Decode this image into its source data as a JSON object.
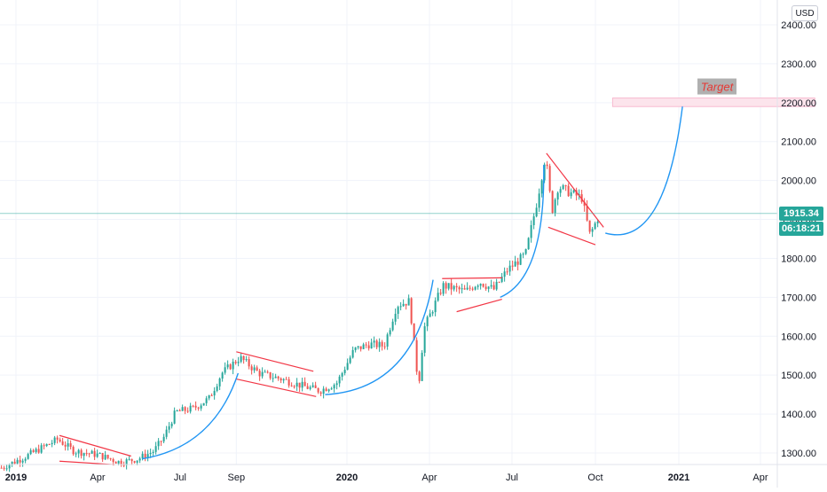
{
  "currency": "USD",
  "current_price": "1915.34",
  "countdown": "06:18:21",
  "target_label": "Target",
  "colors": {
    "up": "#26a69a",
    "down": "#ef5350",
    "pattern": "#f23645",
    "curve": "#2196f3",
    "price_line": "#26a69a",
    "target_zone": "#fce4ec",
    "target_text": "#e53935",
    "target_box": "#b0b0b0"
  },
  "chart_data": {
    "type": "candlestick",
    "symbol_unit": "USD",
    "ylim": [
      1260,
      2440
    ],
    "y_ticks": [
      {
        "value": 1300,
        "label": "1300.00"
      },
      {
        "value": 1400,
        "label": "1400.00"
      },
      {
        "value": 1500,
        "label": "1500.00"
      },
      {
        "value": 1600,
        "label": "1600.00"
      },
      {
        "value": 1700,
        "label": "1700.00"
      },
      {
        "value": 1800,
        "label": "1800.00"
      },
      {
        "value": 1900,
        "label": "1900.00"
      },
      {
        "value": 2000,
        "label": "2000.00"
      },
      {
        "value": 2100,
        "label": "2100.00"
      },
      {
        "value": 2200,
        "label": "2200.00"
      },
      {
        "value": 2300,
        "label": "2300.00"
      },
      {
        "value": 2400,
        "label": "2400.00"
      }
    ],
    "x_ticks": [
      {
        "date": "2019-01-01",
        "label": "2019",
        "major": true
      },
      {
        "date": "2019-04-01",
        "label": "Apr",
        "major": false
      },
      {
        "date": "2019-07-01",
        "label": "Jul",
        "major": false
      },
      {
        "date": "2019-09-01",
        "label": "Sep",
        "major": false
      },
      {
        "date": "2020-01-01",
        "label": "2020",
        "major": true
      },
      {
        "date": "2020-04-01",
        "label": "Apr",
        "major": false
      },
      {
        "date": "2020-07-01",
        "label": "Jul",
        "major": false
      },
      {
        "date": "2020-10-01",
        "label": "Oct",
        "major": false
      },
      {
        "date": "2021-01-01",
        "label": "2021",
        "major": true
      },
      {
        "date": "2021-04-01",
        "label": "Apr",
        "major": false
      }
    ],
    "price_path": [
      [
        "2018-12-15",
        1262
      ],
      [
        "2019-01-10",
        1290
      ],
      [
        "2019-02-15",
        1335
      ],
      [
        "2019-03-05",
        1305
      ],
      [
        "2019-04-01",
        1295
      ],
      [
        "2019-04-25",
        1276
      ],
      [
        "2019-05-15",
        1285
      ],
      [
        "2019-06-01",
        1305
      ],
      [
        "2019-06-12",
        1340
      ],
      [
        "2019-06-25",
        1405
      ],
      [
        "2019-07-15",
        1415
      ],
      [
        "2019-08-01",
        1440
      ],
      [
        "2019-08-15",
        1505
      ],
      [
        "2019-09-04",
        1545
      ],
      [
        "2019-09-25",
        1505
      ],
      [
        "2019-10-20",
        1490
      ],
      [
        "2019-11-15",
        1470
      ],
      [
        "2019-12-01",
        1460
      ],
      [
        "2019-12-20",
        1480
      ],
      [
        "2020-01-08",
        1565
      ],
      [
        "2020-01-25",
        1580
      ],
      [
        "2020-02-10",
        1575
      ],
      [
        "2020-02-24",
        1680
      ],
      [
        "2020-03-09",
        1690
      ],
      [
        "2020-03-19",
        1470
      ],
      [
        "2020-03-25",
        1620
      ],
      [
        "2020-04-15",
        1730
      ],
      [
        "2020-05-10",
        1715
      ],
      [
        "2020-05-25",
        1740
      ],
      [
        "2020-06-10",
        1720
      ],
      [
        "2020-06-25",
        1770
      ],
      [
        "2020-07-15",
        1810
      ],
      [
        "2020-07-28",
        1950
      ],
      [
        "2020-08-06",
        2065
      ],
      [
        "2020-08-13",
        1920
      ],
      [
        "2020-08-20",
        1985
      ],
      [
        "2020-09-01",
        1970
      ],
      [
        "2020-09-15",
        1955
      ],
      [
        "2020-09-24",
        1860
      ],
      [
        "2020-09-30",
        1890
      ],
      [
        "2020-10-05",
        1915
      ]
    ],
    "last_price": 1915.34,
    "target_zone": {
      "from": "2020-10-20",
      "to": "2021-05-31",
      "low": 2190,
      "high": 2212,
      "label": "Target"
    },
    "patterns": [
      {
        "upper": [
          [
            "2019-02-18",
            1345
          ],
          [
            "2019-05-08",
            1292
          ]
        ],
        "lower": [
          [
            "2019-02-18",
            1279
          ],
          [
            "2019-04-20",
            1270
          ]
        ]
      },
      {
        "upper": [
          [
            "2019-09-01",
            1560
          ],
          [
            "2019-11-25",
            1510
          ]
        ],
        "lower": [
          [
            "2019-09-01",
            1490
          ],
          [
            "2019-11-28",
            1445
          ]
        ]
      },
      {
        "upper": [
          [
            "2020-04-15",
            1748
          ],
          [
            "2020-06-20",
            1750
          ]
        ],
        "lower": [
          [
            "2020-05-01",
            1663
          ],
          [
            "2020-06-20",
            1695
          ]
        ]
      },
      {
        "upper": [
          [
            "2020-08-08",
            2070
          ],
          [
            "2020-10-10",
            1880
          ]
        ],
        "lower": [
          [
            "2020-08-10",
            1880
          ],
          [
            "2020-10-01",
            1835
          ]
        ]
      }
    ],
    "curves": [
      {
        "points": [
          [
            "2019-05-20",
            1285
          ],
          [
            "2019-07-25",
            1355
          ],
          [
            "2019-09-03",
            1505
          ]
        ]
      },
      {
        "points": [
          [
            "2019-12-08",
            1450
          ],
          [
            "2020-02-25",
            1530
          ],
          [
            "2020-04-05",
            1745
          ]
        ]
      },
      {
        "points": [
          [
            "2020-06-18",
            1700
          ],
          [
            "2020-07-25",
            1810
          ],
          [
            "2020-08-05",
            2040
          ]
        ]
      },
      {
        "points": [
          [
            "2020-10-12",
            1865
          ],
          [
            "2020-12-05",
            1925
          ],
          [
            "2021-01-05",
            2190
          ]
        ]
      }
    ]
  }
}
